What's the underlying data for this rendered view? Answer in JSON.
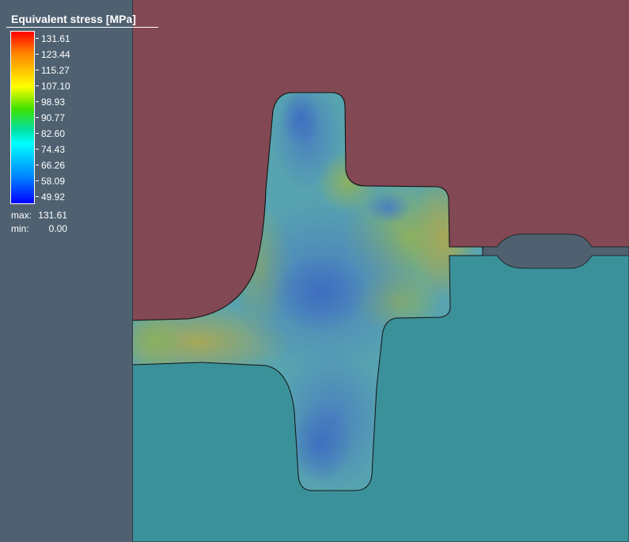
{
  "legend": {
    "title": "Equivalent stress [MPa]",
    "ticks": [
      "131.61",
      "123.44",
      "115.27",
      "107.10",
      "98.93",
      "90.77",
      "82.60",
      "74.43",
      "66.26",
      "58.09",
      "49.92"
    ],
    "max_label": "max:",
    "max_value": "131.61",
    "min_label": "min:",
    "min_value": "0.00"
  },
  "colors": {
    "upper_die": "#824853",
    "lower_die": "#3b9199",
    "panel": "#4f6171",
    "scale_top": "#ff0000",
    "scale_bottom": "#0000ff"
  }
}
